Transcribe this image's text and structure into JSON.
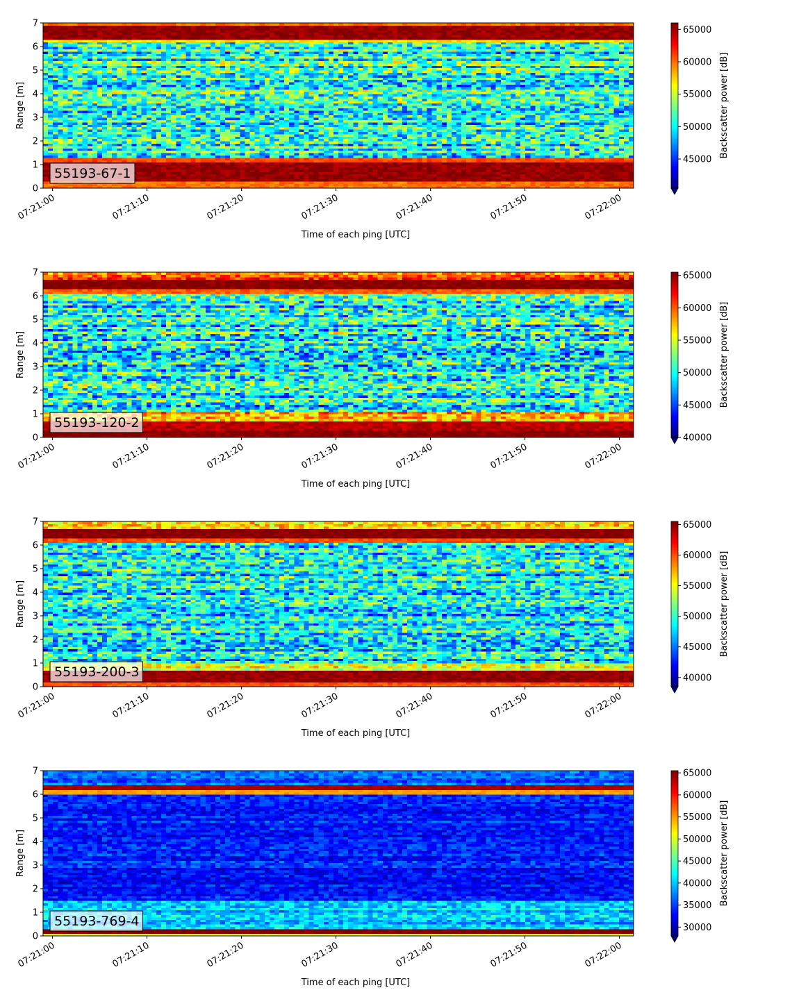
{
  "chart_data": [
    {
      "type": "heatmap",
      "label": "55193-67-1",
      "xlabel": "Time of each ping [UTC]",
      "ylabel": "Range [m]",
      "colorbar_label": "Backscatter power [dB]",
      "x_ticks": [
        "07:21:00",
        "07:21:10",
        "07:21:20",
        "07:21:30",
        "07:21:40",
        "07:21:50",
        "07:22:00"
      ],
      "x_range_seconds": [
        -1,
        61.5
      ],
      "y_ticks": [
        0,
        1,
        2,
        3,
        4,
        5,
        6,
        7
      ],
      "ylim": [
        0,
        7
      ],
      "colorbar_ticks": [
        45000,
        50000,
        55000,
        60000,
        65000
      ],
      "clim": [
        40500,
        66000
      ],
      "colormap": "jet",
      "colorbar_extend": "min",
      "bands": [
        {
          "range": [
            0.0,
            0.3
          ],
          "value": 60000
        },
        {
          "range": [
            0.3,
            1.1
          ],
          "value": 65500
        },
        {
          "range": [
            1.1,
            1.3
          ],
          "value": 61000
        },
        {
          "range": [
            1.3,
            6.2
          ],
          "value": 51000,
          "noise": 7000
        },
        {
          "range": [
            6.2,
            6.35
          ],
          "value": 57000
        },
        {
          "range": [
            6.35,
            6.95
          ],
          "value": 65500
        },
        {
          "range": [
            6.95,
            7.0
          ],
          "value": 60000
        }
      ]
    },
    {
      "type": "heatmap",
      "label": "55193-120-2",
      "xlabel": "Time of each ping [UTC]",
      "ylabel": "Range [m]",
      "colorbar_label": "Backscatter power [dB]",
      "x_ticks": [
        "07:21:00",
        "07:21:10",
        "07:21:20",
        "07:21:30",
        "07:21:40",
        "07:21:50",
        "07:22:00"
      ],
      "x_range_seconds": [
        -1,
        61.5
      ],
      "y_ticks": [
        0,
        1,
        2,
        3,
        4,
        5,
        6,
        7
      ],
      "ylim": [
        0,
        7
      ],
      "colorbar_ticks": [
        40000,
        45000,
        50000,
        55000,
        60000,
        65000
      ],
      "clim": [
        40000,
        65500
      ],
      "colormap": "jet",
      "colorbar_extend": "min",
      "bands": [
        {
          "range": [
            0.0,
            0.35
          ],
          "value": 65500
        },
        {
          "range": [
            0.35,
            0.7
          ],
          "value": 64000
        },
        {
          "range": [
            0.7,
            1.1
          ],
          "value": 58000,
          "noise": 5000
        },
        {
          "range": [
            1.1,
            6.15
          ],
          "value": 50000,
          "noise": 7500
        },
        {
          "range": [
            6.15,
            6.3
          ],
          "value": 60000
        },
        {
          "range": [
            6.3,
            6.7
          ],
          "value": 65500
        },
        {
          "range": [
            6.7,
            7.0
          ],
          "value": 60000,
          "noise": 4000
        }
      ]
    },
    {
      "type": "heatmap",
      "label": "55193-200-3",
      "xlabel": "Time of each ping [UTC]",
      "ylabel": "Range [m]",
      "colorbar_label": "Backscatter power [dB]",
      "x_ticks": [
        "07:21:00",
        "07:21:10",
        "07:21:20",
        "07:21:30",
        "07:21:40",
        "07:21:50",
        "07:22:00"
      ],
      "x_range_seconds": [
        -1,
        61.5
      ],
      "y_ticks": [
        0,
        1,
        2,
        3,
        4,
        5,
        6,
        7
      ],
      "ylim": [
        0,
        7
      ],
      "colorbar_ticks": [
        40000,
        45000,
        50000,
        55000,
        60000,
        65000
      ],
      "clim": [
        38500,
        65500
      ],
      "colormap": "jet",
      "colorbar_extend": "min",
      "bands": [
        {
          "range": [
            0.0,
            0.2
          ],
          "value": 60000
        },
        {
          "range": [
            0.2,
            0.7
          ],
          "value": 65000
        },
        {
          "range": [
            0.7,
            1.0
          ],
          "value": 55000,
          "noise": 5000
        },
        {
          "range": [
            1.0,
            6.15
          ],
          "value": 48500,
          "noise": 7000
        },
        {
          "range": [
            6.15,
            6.3
          ],
          "value": 60000
        },
        {
          "range": [
            6.3,
            6.7
          ],
          "value": 65500
        },
        {
          "range": [
            6.7,
            7.0
          ],
          "value": 58000,
          "noise": 5000
        }
      ]
    },
    {
      "type": "heatmap",
      "label": "55193-769-4",
      "xlabel": "Time of each ping [UTC]",
      "ylabel": "Range [m]",
      "colorbar_label": "Backscatter power [dB]",
      "x_ticks": [
        "07:21:00",
        "07:21:10",
        "07:21:20",
        "07:21:30",
        "07:21:40",
        "07:21:50",
        "07:22:00"
      ],
      "x_range_seconds": [
        -1,
        61.5
      ],
      "y_ticks": [
        0,
        1,
        2,
        3,
        4,
        5,
        6,
        7
      ],
      "ylim": [
        0,
        7
      ],
      "colorbar_ticks": [
        30000,
        35000,
        40000,
        45000,
        50000,
        55000,
        60000,
        65000
      ],
      "clim": [
        28000,
        65500
      ],
      "colormap": "jet",
      "colorbar_extend": "min",
      "bands": [
        {
          "range": [
            0.0,
            0.15
          ],
          "value": 50000
        },
        {
          "range": [
            0.15,
            0.3
          ],
          "value": 65500
        },
        {
          "range": [
            0.3,
            1.5
          ],
          "value": 40000,
          "noise": 5000
        },
        {
          "range": [
            1.5,
            6.0
          ],
          "value": 33500,
          "noise": 4000
        },
        {
          "range": [
            6.0,
            6.2
          ],
          "value": 55000
        },
        {
          "range": [
            6.2,
            6.4
          ],
          "value": 64000
        },
        {
          "range": [
            6.4,
            7.0
          ],
          "value": 36000,
          "noise": 4000
        }
      ]
    }
  ]
}
